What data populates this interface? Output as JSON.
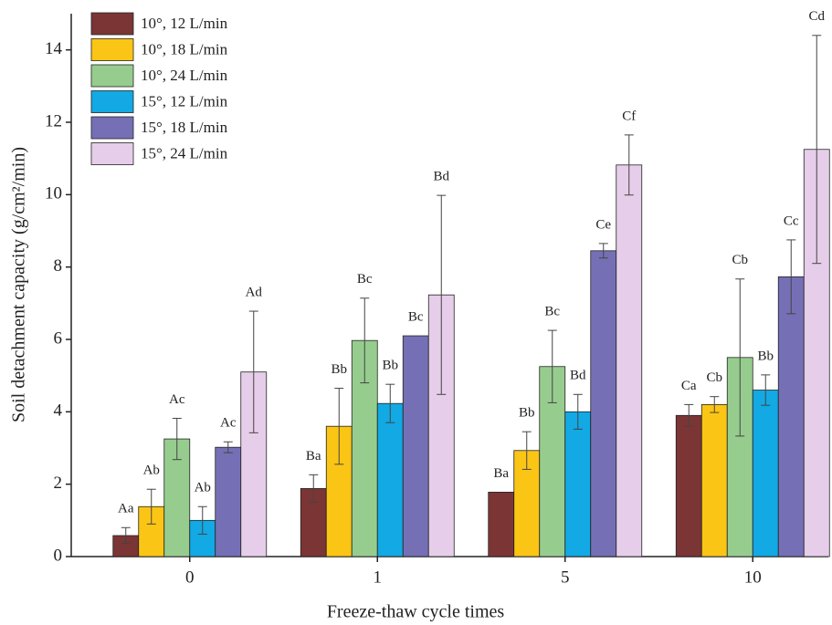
{
  "chart_data": {
    "type": "bar",
    "x_label": "Freeze-thaw cycle times",
    "y_label": "Soil detachment capacity (g/cm²/min)",
    "categories": [
      "0",
      "1",
      "5",
      "10"
    ],
    "ylim": [
      0,
      15
    ],
    "yticks": [
      0,
      2,
      4,
      6,
      8,
      10,
      12,
      14
    ],
    "legend": "upper left",
    "series": [
      {
        "name": "10°, 12 L/min",
        "color": "#7b3535",
        "values": [
          0.58,
          1.88,
          1.78,
          3.9
        ],
        "errors": [
          0.22,
          0.38,
          null,
          0.3
        ],
        "labels": [
          "Aa",
          "Ba",
          "Ba",
          "Ca"
        ]
      },
      {
        "name": "10°, 18 L/min",
        "color": "#fbc515",
        "values": [
          1.38,
          3.6,
          2.93,
          4.2
        ],
        "errors": [
          0.48,
          1.05,
          0.52,
          0.22
        ],
        "labels": [
          "Ab",
          "Bb",
          "Bb",
          "Cb"
        ]
      },
      {
        "name": "10°, 24 L/min",
        "color": "#97cc8f",
        "values": [
          3.25,
          5.97,
          5.25,
          5.5
        ],
        "errors": [
          0.57,
          1.17,
          1.0,
          2.17
        ],
        "labels": [
          "Ac",
          "Bc",
          "Bc",
          "Cb"
        ]
      },
      {
        "name": "15°, 12 L/min",
        "color": "#12a9e4",
        "values": [
          1.0,
          4.23,
          4.0,
          4.6
        ],
        "errors": [
          0.38,
          0.53,
          0.48,
          0.42
        ],
        "labels": [
          "Ab",
          "Bb",
          "Bd",
          "Bb"
        ]
      },
      {
        "name": "15°, 18 L/min",
        "color": "#7570b5",
        "values": [
          3.02,
          6.1,
          8.45,
          7.73
        ],
        "errors": [
          0.15,
          null,
          0.2,
          1.02
        ],
        "labels": [
          "Ac",
          "Bc",
          "Ce",
          "Cc"
        ]
      },
      {
        "name": "15°, 24 L/min",
        "color": "#e6cde9",
        "values": [
          5.1,
          7.23,
          10.82,
          11.25
        ],
        "errors": [
          1.68,
          2.75,
          0.83,
          3.15
        ],
        "labels": [
          "Ad",
          "Bd",
          "Cf",
          "Cd"
        ]
      }
    ]
  }
}
